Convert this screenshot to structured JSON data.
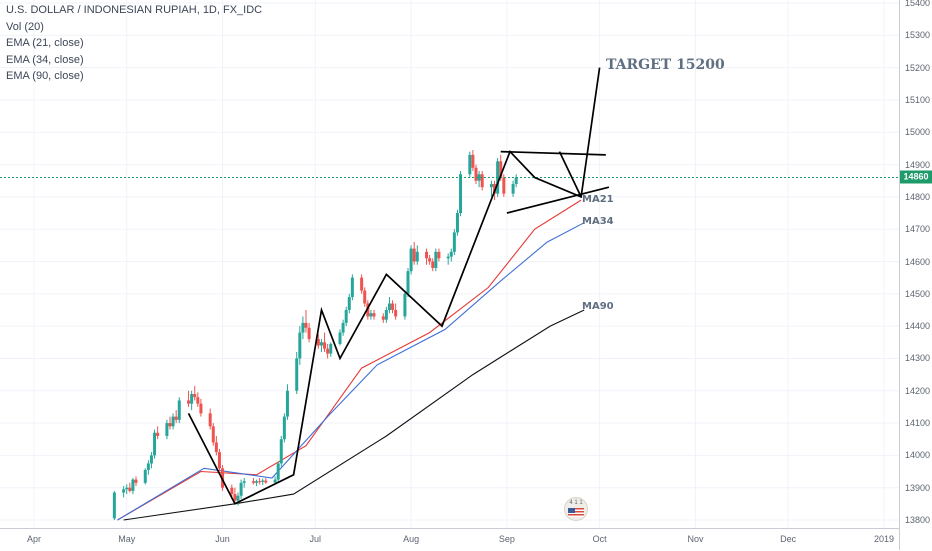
{
  "legend": {
    "symbol_line": "U.S. DOLLAR / INDONESIAN RUPIAH, 1D, FX_IDC",
    "vol": "Vol (20)",
    "ema21": "EMA (21, close)",
    "ema34": "EMA (34, close)",
    "ema90": "EMA (90, close)"
  },
  "price_axis": {
    "ticks": [
      "15400",
      "15300",
      "15200",
      "15100",
      "15000",
      "14900",
      "14800",
      "14700",
      "14600",
      "14500",
      "14400",
      "14300",
      "14200",
      "14100",
      "14000",
      "13900",
      "13800"
    ],
    "last_price": "14860"
  },
  "time_axis": {
    "ticks": [
      "Apr",
      "May",
      "Jun",
      "Jul",
      "Aug",
      "Sep",
      "Oct",
      "Nov",
      "Dec",
      "2019"
    ]
  },
  "annotations": {
    "target": "TARGET 15200",
    "ma21": "MA21",
    "ma34": "MA34",
    "ma90": "MA90"
  },
  "badge": {
    "text": "4 1 1"
  },
  "colors": {
    "up": "#26a69a",
    "down": "#ef5350",
    "ema21": "#e53935",
    "ema34": "#3f6fd6",
    "ema90": "#111111",
    "pattern": "#000000",
    "last_price": "#1f9a6a"
  },
  "chart_data": {
    "type": "candlestick",
    "symbol": "U.S. DOLLAR / INDONESIAN RUPIAH, 1D, FX_IDC",
    "x_range": [
      "2018-04-01",
      "2019-01-01"
    ],
    "ylim": [
      13800,
      15400
    ],
    "candles_ohlc": [
      [
        13805,
        13890,
        13800,
        13885
      ],
      [
        13885,
        13905,
        13870,
        13895
      ],
      [
        13895,
        13910,
        13880,
        13900
      ],
      [
        13900,
        13915,
        13885,
        13890
      ],
      [
        13890,
        13930,
        13880,
        13925
      ],
      [
        13925,
        13935,
        13905,
        13915
      ],
      [
        13915,
        13960,
        13910,
        13955
      ],
      [
        13955,
        13985,
        13940,
        13975
      ],
      [
        13975,
        14010,
        13960,
        14000
      ],
      [
        14000,
        14080,
        13990,
        14070
      ],
      [
        14070,
        14090,
        14050,
        14060
      ],
      [
        14060,
        14110,
        14050,
        14100
      ],
      [
        14100,
        14120,
        14080,
        14090
      ],
      [
        14090,
        14130,
        14080,
        14120
      ],
      [
        14120,
        14140,
        14100,
        14110
      ],
      [
        14110,
        14180,
        14100,
        14170
      ],
      [
        14170,
        14200,
        14150,
        14160
      ],
      [
        14160,
        14200,
        14140,
        14190
      ],
      [
        14190,
        14215,
        14170,
        14180
      ],
      [
        14180,
        14195,
        14150,
        14160
      ],
      [
        14160,
        14175,
        14120,
        14130
      ],
      [
        14130,
        14145,
        14080,
        14090
      ],
      [
        14090,
        14100,
        14030,
        14040
      ],
      [
        14040,
        14060,
        14000,
        14010
      ],
      [
        14010,
        14020,
        13950,
        13960
      ],
      [
        13960,
        13970,
        13890,
        13900
      ],
      [
        13900,
        13910,
        13870,
        13880
      ],
      [
        13880,
        13900,
        13850,
        13860
      ],
      [
        13860,
        13885,
        13845,
        13875
      ],
      [
        13875,
        13925,
        13865,
        13915
      ],
      [
        13915,
        13930,
        13900,
        13920
      ],
      [
        13920,
        13930,
        13910,
        13915
      ],
      [
        13915,
        13925,
        13905,
        13920
      ],
      [
        13920,
        13930,
        13910,
        13918
      ],
      [
        13918,
        13928,
        13908,
        13922
      ],
      [
        13922,
        13930,
        13912,
        13916
      ],
      [
        13916,
        13935,
        13910,
        13925
      ],
      [
        13925,
        13980,
        13915,
        13975
      ],
      [
        13975,
        14060,
        13965,
        14050
      ],
      [
        14050,
        14130,
        14040,
        14120
      ],
      [
        14120,
        14220,
        14110,
        14200
      ],
      [
        14200,
        14320,
        14190,
        14300
      ],
      [
        14300,
        14400,
        14280,
        14380
      ],
      [
        14380,
        14430,
        14360,
        14410
      ],
      [
        14410,
        14450,
        14380,
        14395
      ],
      [
        14395,
        14410,
        14350,
        14360
      ],
      [
        14360,
        14375,
        14330,
        14340
      ],
      [
        14340,
        14360,
        14320,
        14350
      ],
      [
        14350,
        14380,
        14320,
        14330
      ],
      [
        14330,
        14345,
        14300,
        14315
      ],
      [
        14315,
        14350,
        14305,
        14345
      ],
      [
        14345,
        14390,
        14340,
        14380
      ],
      [
        14380,
        14420,
        14370,
        14410
      ],
      [
        14410,
        14460,
        14400,
        14450
      ],
      [
        14450,
        14500,
        14440,
        14490
      ],
      [
        14490,
        14560,
        14480,
        14550
      ],
      [
        14550,
        14560,
        14500,
        14510
      ],
      [
        14510,
        14520,
        14460,
        14470
      ],
      [
        14470,
        14480,
        14420,
        14430
      ],
      [
        14430,
        14450,
        14420,
        14440
      ],
      [
        14440,
        14450,
        14420,
        14430
      ],
      [
        14430,
        14440,
        14410,
        14420
      ],
      [
        14420,
        14460,
        14410,
        14450
      ],
      [
        14450,
        14490,
        14440,
        14470
      ],
      [
        14470,
        14480,
        14440,
        14450
      ],
      [
        14450,
        14470,
        14420,
        14430
      ],
      [
        14430,
        14510,
        14420,
        14500
      ],
      [
        14500,
        14580,
        14490,
        14570
      ],
      [
        14570,
        14650,
        14560,
        14640
      ],
      [
        14640,
        14660,
        14590,
        14600
      ],
      [
        14600,
        14650,
        14590,
        14630
      ],
      [
        14630,
        14640,
        14590,
        14610
      ],
      [
        14610,
        14620,
        14590,
        14600
      ],
      [
        14600,
        14610,
        14570,
        14580
      ],
      [
        14580,
        14640,
        14570,
        14630
      ],
      [
        14630,
        14640,
        14600,
        14610
      ],
      [
        14610,
        14625,
        14590,
        14615
      ],
      [
        14615,
        14640,
        14600,
        14630
      ],
      [
        14630,
        14700,
        14620,
        14690
      ],
      [
        14690,
        14760,
        14680,
        14750
      ],
      [
        14750,
        14880,
        14740,
        14870
      ],
      [
        14870,
        14940,
        14860,
        14930
      ],
      [
        14930,
        14945,
        14880,
        14890
      ],
      [
        14890,
        14900,
        14840,
        14850
      ],
      [
        14850,
        14880,
        14830,
        14870
      ],
      [
        14870,
        14880,
        14820,
        14830
      ],
      [
        14830,
        14850,
        14800,
        14840
      ],
      [
        14840,
        14850,
        14790,
        14810
      ],
      [
        14810,
        14920,
        14800,
        14910
      ],
      [
        14910,
        14930,
        14850,
        14860
      ],
      [
        14860,
        14870,
        14800,
        14810
      ],
      [
        14810,
        14850,
        14800,
        14840
      ],
      [
        14840,
        14870,
        14830,
        14860
      ]
    ],
    "series": [
      {
        "name": "EMA (21, close)",
        "x": [
          "2018-04-28",
          "2018-05-25",
          "2018-06-12",
          "2018-06-28",
          "2018-07-16",
          "2018-08-07",
          "2018-08-26",
          "2018-09-10",
          "2018-09-25"
        ],
        "y": [
          13800,
          13950,
          13940,
          14030,
          14270,
          14380,
          14520,
          14700,
          14790
        ]
      },
      {
        "name": "EMA (34, close)",
        "x": [
          "2018-04-28",
          "2018-05-26",
          "2018-06-17",
          "2018-07-05",
          "2018-07-21",
          "2018-08-12",
          "2018-08-30",
          "2018-09-14",
          "2018-09-26"
        ],
        "y": [
          13800,
          13960,
          13930,
          14120,
          14280,
          14390,
          14540,
          14660,
          14720
        ]
      },
      {
        "name": "EMA (90, close)",
        "x": [
          "2018-04-30",
          "2018-06-05",
          "2018-06-24",
          "2018-07-24",
          "2018-08-21",
          "2018-09-15",
          "2018-09-26"
        ],
        "y": [
          13800,
          13850,
          13880,
          14060,
          14250,
          14400,
          14450
        ]
      }
    ],
    "pattern_lines": [
      {
        "x": [
          "2018-05-21",
          "2018-06-05",
          "2018-06-24",
          "2018-07-03",
          "2018-07-09",
          "2018-07-24",
          "2018-08-11",
          "2018-09-02",
          "2018-09-10",
          "2018-09-25",
          "2018-10-01"
        ],
        "y": [
          14130,
          13850,
          13940,
          14450,
          14300,
          14560,
          14400,
          14940,
          14860,
          14800,
          15200
        ]
      },
      {
        "x": [
          "2018-08-30",
          "2018-10-03"
        ],
        "y": [
          14940,
          14930
        ]
      },
      {
        "x": [
          "2018-09-01",
          "2018-10-04"
        ],
        "y": [
          14750,
          14830
        ]
      },
      {
        "x": [
          "2018-09-18",
          "2018-09-25"
        ],
        "y": [
          14940,
          14800
        ]
      }
    ]
  }
}
